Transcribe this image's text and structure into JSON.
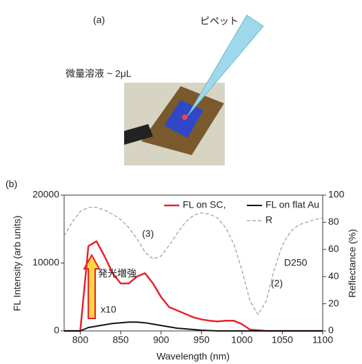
{
  "panel_a": {
    "label": "(a)",
    "pipette_label": "ピペット",
    "droplet_label": "微量溶液 ~ 2μL"
  },
  "chart_data": {
    "type": "line",
    "panel_label": "(b)",
    "xlabel": "Wavelength (nm)",
    "ylabel": "FL Intensity (arb units)",
    "y2label": "Reflectance (%)",
    "xlim": [
      780,
      1100
    ],
    "xticks": [
      800,
      850,
      900,
      950,
      1000,
      1050,
      1100
    ],
    "ylim": [
      0,
      20000
    ],
    "yticks": [
      0,
      10000,
      20000
    ],
    "y2lim": [
      0,
      100
    ],
    "y2ticks": [
      0,
      20,
      40,
      60,
      80,
      100
    ],
    "legend": "upper right",
    "x": [
      780,
      790,
      800,
      810,
      820,
      830,
      840,
      850,
      860,
      870,
      880,
      890,
      900,
      910,
      920,
      930,
      940,
      950,
      960,
      970,
      980,
      990,
      1000,
      1010,
      1020,
      1030,
      1040,
      1050,
      1060,
      1070,
      1080,
      1090,
      1100
    ],
    "series": [
      {
        "name": "FL on SC,",
        "color": "#e8202a",
        "style": "solid",
        "width": 2.5,
        "values": [
          0,
          0,
          0,
          12500,
          13200,
          11000,
          8500,
          7000,
          7000,
          8000,
          8500,
          7000,
          5000,
          3500,
          3000,
          2500,
          2000,
          1700,
          1500,
          1400,
          1500,
          1500,
          1000,
          200,
          100,
          0,
          0,
          0,
          0,
          0,
          0,
          0,
          0
        ]
      },
      {
        "name": "FL on flat Au",
        "color": "#111111",
        "style": "solid",
        "width": 2,
        "values": [
          0,
          0,
          0,
          500,
          700,
          900,
          1100,
          1200,
          1300,
          1300,
          1200,
          1000,
          800,
          600,
          400,
          300,
          200,
          100,
          50,
          0,
          0,
          0,
          0,
          0,
          0,
          0,
          0,
          0,
          0,
          0,
          0,
          0,
          0
        ]
      },
      {
        "name": "R",
        "color": "#999999",
        "style": "dashed",
        "width": 1.2,
        "axis": "y2",
        "values": [
          70,
          80,
          88,
          91,
          91,
          89,
          86,
          82,
          76,
          68,
          58,
          53,
          55,
          63,
          72,
          80,
          85,
          87,
          86,
          83,
          76,
          64,
          45,
          22,
          12,
          22,
          45,
          63,
          73,
          78,
          80,
          82,
          83
        ]
      }
    ],
    "annotations": [
      "(3)",
      "(2)",
      "D250",
      "発光増強",
      "x10"
    ]
  }
}
